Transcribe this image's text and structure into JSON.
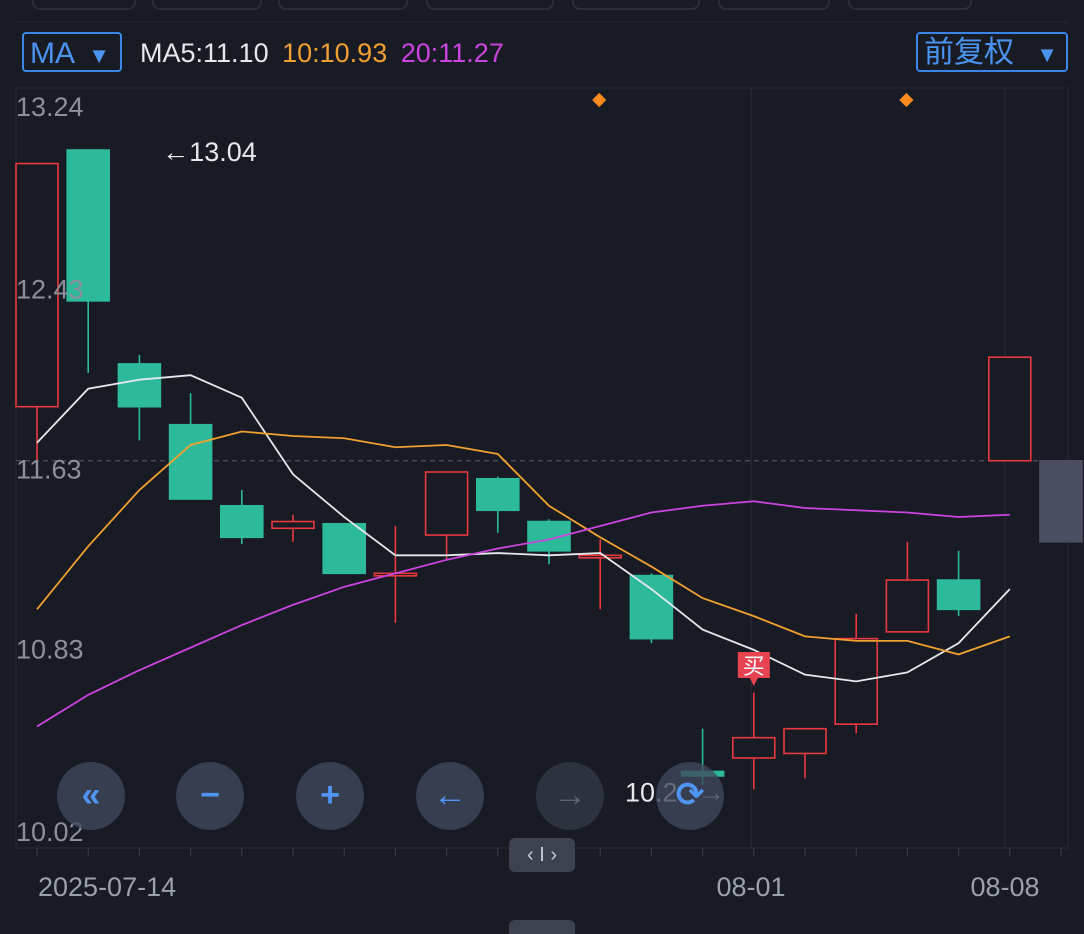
{
  "header": {
    "indicator_label": "MA",
    "ma5": "MA5:11.10",
    "ma10": "10:10.93",
    "ma20": "20:11.27",
    "adjust_label": "前复权",
    "dropdown_icon": "triangle-down-icon"
  },
  "colors": {
    "up": "#e8393e",
    "down": "#2dba9a",
    "ma5": "#e8e8ec",
    "ma10": "#f0a030",
    "ma20": "#cc44e0",
    "accent": "#3a86e8",
    "signal": "#ff8a1e"
  },
  "chart_data": {
    "type": "candlestick",
    "y_ticks": [
      "13.24",
      "12.43",
      "11.63",
      "10.83",
      "10.02"
    ],
    "x_tick_labels": [
      "2025-07-14",
      "08-01",
      "08-08"
    ],
    "ylim": [
      10.02,
      13.24
    ],
    "current_price_line": 11.66,
    "max_annotation": "←13.04",
    "min_annotation": "10.2",
    "buy_marker": "买",
    "candles": [
      {
        "o": 11.9,
        "h": 12.98,
        "l": 11.63,
        "c": 12.98
      },
      {
        "o": 13.04,
        "h": 13.04,
        "l": 12.05,
        "c": 12.37
      },
      {
        "o": 12.09,
        "h": 12.13,
        "l": 11.75,
        "c": 11.9
      },
      {
        "o": 11.82,
        "h": 11.96,
        "l": 11.49,
        "c": 11.49
      },
      {
        "o": 11.46,
        "h": 11.53,
        "l": 11.29,
        "c": 11.32
      },
      {
        "o": 11.36,
        "h": 11.42,
        "l": 11.3,
        "c": 11.39
      },
      {
        "o": 11.38,
        "h": 11.38,
        "l": 11.16,
        "c": 11.16
      },
      {
        "o": 11.15,
        "h": 11.37,
        "l": 10.94,
        "c": 11.16
      },
      {
        "o": 11.33,
        "h": 11.61,
        "l": 11.22,
        "c": 11.61
      },
      {
        "o": 11.58,
        "h": 11.59,
        "l": 11.34,
        "c": 11.44
      },
      {
        "o": 11.39,
        "h": 11.4,
        "l": 11.2,
        "c": 11.26
      },
      {
        "o": 11.24,
        "h": 11.31,
        "l": 11.0,
        "c": 11.24
      },
      {
        "o": 11.15,
        "h": 11.16,
        "l": 10.85,
        "c": 10.87
      },
      {
        "o": 10.28,
        "h": 10.47,
        "l": 10.22,
        "c": 10.26
      },
      {
        "o": 10.34,
        "h": 10.63,
        "l": 10.2,
        "c": 10.43
      },
      {
        "o": 10.36,
        "h": 10.46,
        "l": 10.25,
        "c": 10.47
      },
      {
        "o": 10.49,
        "h": 10.98,
        "l": 10.45,
        "c": 10.87
      },
      {
        "o": 10.9,
        "h": 11.3,
        "l": 10.9,
        "c": 11.13
      },
      {
        "o": 11.13,
        "h": 11.26,
        "l": 10.97,
        "c": 11.0
      },
      {
        "o": 11.66,
        "h": 12.12,
        "l": 11.66,
        "c": 12.12
      },
      {
        "o": 11.66,
        "h": 11.66,
        "l": 11.3,
        "c": 11.3
      }
    ],
    "series": [
      {
        "name": "MA5",
        "values": [
          11.74,
          11.98,
          12.02,
          12.04,
          11.94,
          11.6,
          11.41,
          11.24,
          11.24,
          11.25,
          11.24,
          11.25,
          11.09,
          10.91,
          10.82,
          10.71,
          10.68,
          10.72,
          10.85,
          11.09
        ]
      },
      {
        "name": "MA10",
        "values": [
          11.0,
          11.28,
          11.53,
          11.73,
          11.79,
          11.77,
          11.76,
          11.72,
          11.73,
          11.69,
          11.46,
          11.32,
          11.19,
          11.05,
          10.97,
          10.88,
          10.86,
          10.86,
          10.8,
          10.88
        ]
      },
      {
        "name": "MA20",
        "values": [
          10.48,
          10.62,
          10.73,
          10.83,
          10.93,
          11.02,
          11.1,
          11.16,
          11.22,
          11.27,
          11.31,
          11.37,
          11.43,
          11.46,
          11.48,
          11.45,
          11.44,
          11.43,
          11.41,
          11.42
        ]
      }
    ]
  },
  "controls": [
    {
      "name": "scroll-to-start-button",
      "glyph": "«",
      "enabled": true
    },
    {
      "name": "zoom-out-button",
      "glyph": "−",
      "enabled": true
    },
    {
      "name": "zoom-in-button",
      "glyph": "+",
      "enabled": true
    },
    {
      "name": "scroll-left-button",
      "glyph": "←",
      "enabled": true
    },
    {
      "name": "scroll-right-button",
      "glyph": "→",
      "enabled": false
    },
    {
      "name": "reset-view-button",
      "glyph": "⟳",
      "enabled": true
    }
  ],
  "drag_handle_label": "‹ I ›"
}
